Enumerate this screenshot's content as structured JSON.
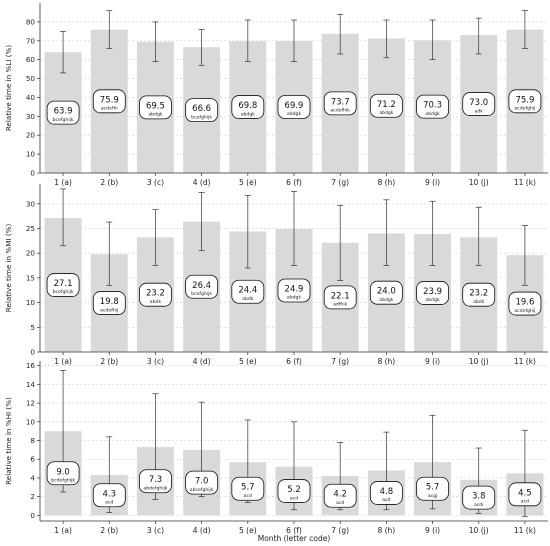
{
  "xlabel": "Month (letter code)",
  "chart_data": [
    {
      "type": "bar",
      "ylabel": "Relative time in %LI (%)",
      "ylim": [
        0,
        90
      ],
      "yticks": [
        0,
        10,
        20,
        30,
        40,
        50,
        60,
        70,
        80
      ],
      "categories": [
        "1 (a)",
        "2 (b)",
        "3 (c)",
        "4 (d)",
        "5 (e)",
        "6 (f)",
        "7 (g)",
        "8 (h)",
        "9 (i)",
        "10 (j)",
        "11 (k)"
      ],
      "values": [
        63.9,
        75.9,
        69.5,
        66.6,
        69.8,
        69.9,
        73.7,
        71.2,
        70.3,
        73.0,
        75.9
      ],
      "error_low": [
        53,
        66,
        59,
        57,
        59,
        59,
        63,
        61,
        60,
        63,
        66
      ],
      "error_high": [
        75,
        86,
        80,
        76,
        81,
        81,
        84,
        81,
        81,
        82,
        86
      ],
      "value_labels": [
        "63.9",
        "75.9",
        "69.5",
        "66.6",
        "69.8",
        "69.9",
        "73.7",
        "71.2",
        "70.3",
        "73.0",
        "75.9"
      ],
      "letters": [
        "bcefghijk",
        "acdefhi",
        "abdgk",
        "bcefghijk",
        "abdgk",
        "abdgk",
        "acdefhik",
        "abdgk",
        "abdgk",
        "adk",
        "acdefghij"
      ],
      "grid": "y-dashed",
      "bar_color": "#d9d9d9"
    },
    {
      "type": "bar",
      "ylabel": "Relative time in %MI (%)",
      "ylim": [
        0,
        34
      ],
      "yticks": [
        0,
        5,
        10,
        15,
        20,
        25,
        30
      ],
      "categories": [
        "1 (a)",
        "2 (b)",
        "3 (c)",
        "4 (d)",
        "5 (e)",
        "6 (f)",
        "7 (g)",
        "8 (h)",
        "9 (i)",
        "10 (j)",
        "11 (k)"
      ],
      "values": [
        27.1,
        19.8,
        23.2,
        26.4,
        24.4,
        24.9,
        22.1,
        24.0,
        23.9,
        23.2,
        19.6
      ],
      "error_low": [
        21.5,
        13.5,
        17.5,
        20.5,
        17,
        17.5,
        14.5,
        17.5,
        17.5,
        17.5,
        13.5
      ],
      "error_high": [
        33,
        26.3,
        28.8,
        32.3,
        31.7,
        32.5,
        29.7,
        30.8,
        30.5,
        29.3,
        25.6
      ],
      "value_labels": [
        "27.1",
        "19.8",
        "23.2",
        "26.4",
        "24.4",
        "24.9",
        "22.1",
        "24.0",
        "23.9",
        "23.2",
        "19.6"
      ],
      "letters": [
        "bcefghijk",
        "acdefhij",
        "abdk",
        "bcefghijk",
        "abdk",
        "abdgk",
        "adfhik",
        "abdgk",
        "abdgk",
        "abdk",
        "acdefghij"
      ],
      "grid": "y-dashed",
      "bar_color": "#d9d9d9"
    },
    {
      "type": "bar",
      "ylabel": "Relative time in %HI (%)",
      "ylim": [
        -0.6,
        16.5
      ],
      "yticks": [
        0,
        2,
        4,
        6,
        8,
        10,
        12,
        14,
        16
      ],
      "categories": [
        "1 (a)",
        "2 (b)",
        "3 (c)",
        "4 (d)",
        "5 (e)",
        "6 (f)",
        "7 (g)",
        "8 (h)",
        "9 (i)",
        "10 (j)",
        "11 (k)"
      ],
      "values": [
        9.0,
        4.3,
        7.3,
        7.0,
        5.7,
        5.2,
        4.2,
        4.8,
        5.7,
        3.8,
        4.5
      ],
      "error_low": [
        2.5,
        0.3,
        1.7,
        2.0,
        1.4,
        0.6,
        0.6,
        0.6,
        0.7,
        0.2,
        -0.1
      ],
      "error_high": [
        15.5,
        8.4,
        13.0,
        12.1,
        10.2,
        10.0,
        7.8,
        8.9,
        10.7,
        7.2,
        9.1
      ],
      "value_labels": [
        "9.0",
        "4.3",
        "7.3",
        "7.0",
        "5.7",
        "5.2",
        "4.2",
        "4.8",
        "5.7",
        "3.8",
        "4.5"
      ],
      "letters": [
        "bcdefghijk",
        "acd",
        "abdefghijk",
        "abcefghijk",
        "acd",
        "acd",
        "acd",
        "acd",
        "acgj",
        "acdi",
        "acd"
      ],
      "grid": "y-dashed",
      "bar_color": "#d9d9d9"
    }
  ]
}
